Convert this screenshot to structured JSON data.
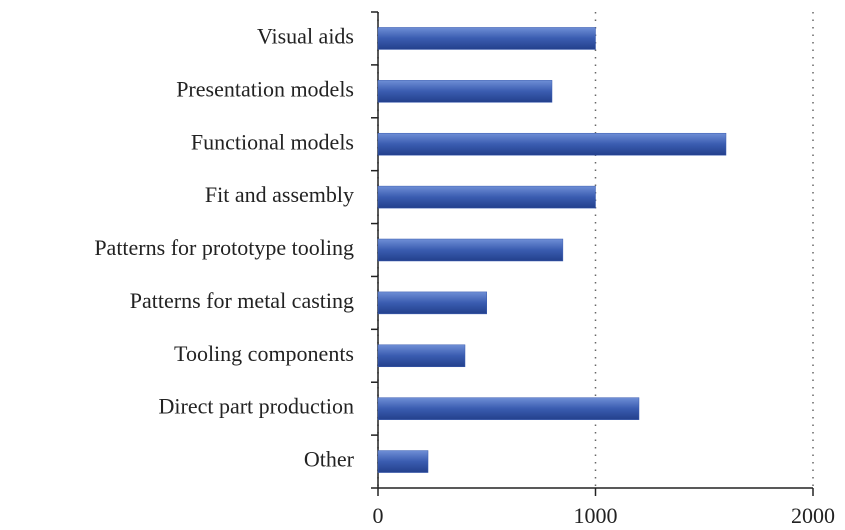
{
  "chart_data": {
    "type": "bar",
    "orientation": "horizontal",
    "categories": [
      "Visual aids",
      "Presentation models",
      "Functional models",
      "Fit and assembly",
      "Patterns for prototype tooling",
      "Patterns for metal casting",
      "Tooling components",
      "Direct part production",
      "Other"
    ],
    "values": [
      1000,
      800,
      1600,
      1000,
      850,
      500,
      400,
      1200,
      230
    ],
    "color": "#3a5cb0",
    "xlim": [
      0,
      2000
    ],
    "xticks": [
      0,
      1000,
      2000
    ],
    "grid": true
  }
}
